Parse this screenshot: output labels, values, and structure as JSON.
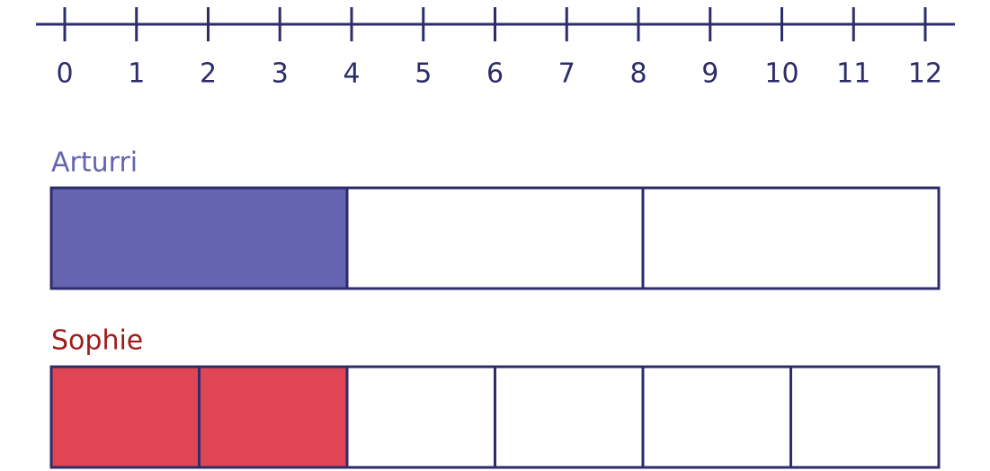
{
  "number_line": {
    "labels": [
      "0",
      "1",
      "2",
      "3",
      "4",
      "5",
      "6",
      "7",
      "8",
      "9",
      "10",
      "11",
      "12"
    ]
  },
  "bars": [
    {
      "label": "Arturri",
      "label_color": "#6464b0",
      "fill": "#6464b0",
      "parts": 3,
      "filled": 1
    },
    {
      "label": "Sophie",
      "label_color": "#a01c1c",
      "fill": "#e04555",
      "parts": 6,
      "filled": 2
    }
  ]
}
